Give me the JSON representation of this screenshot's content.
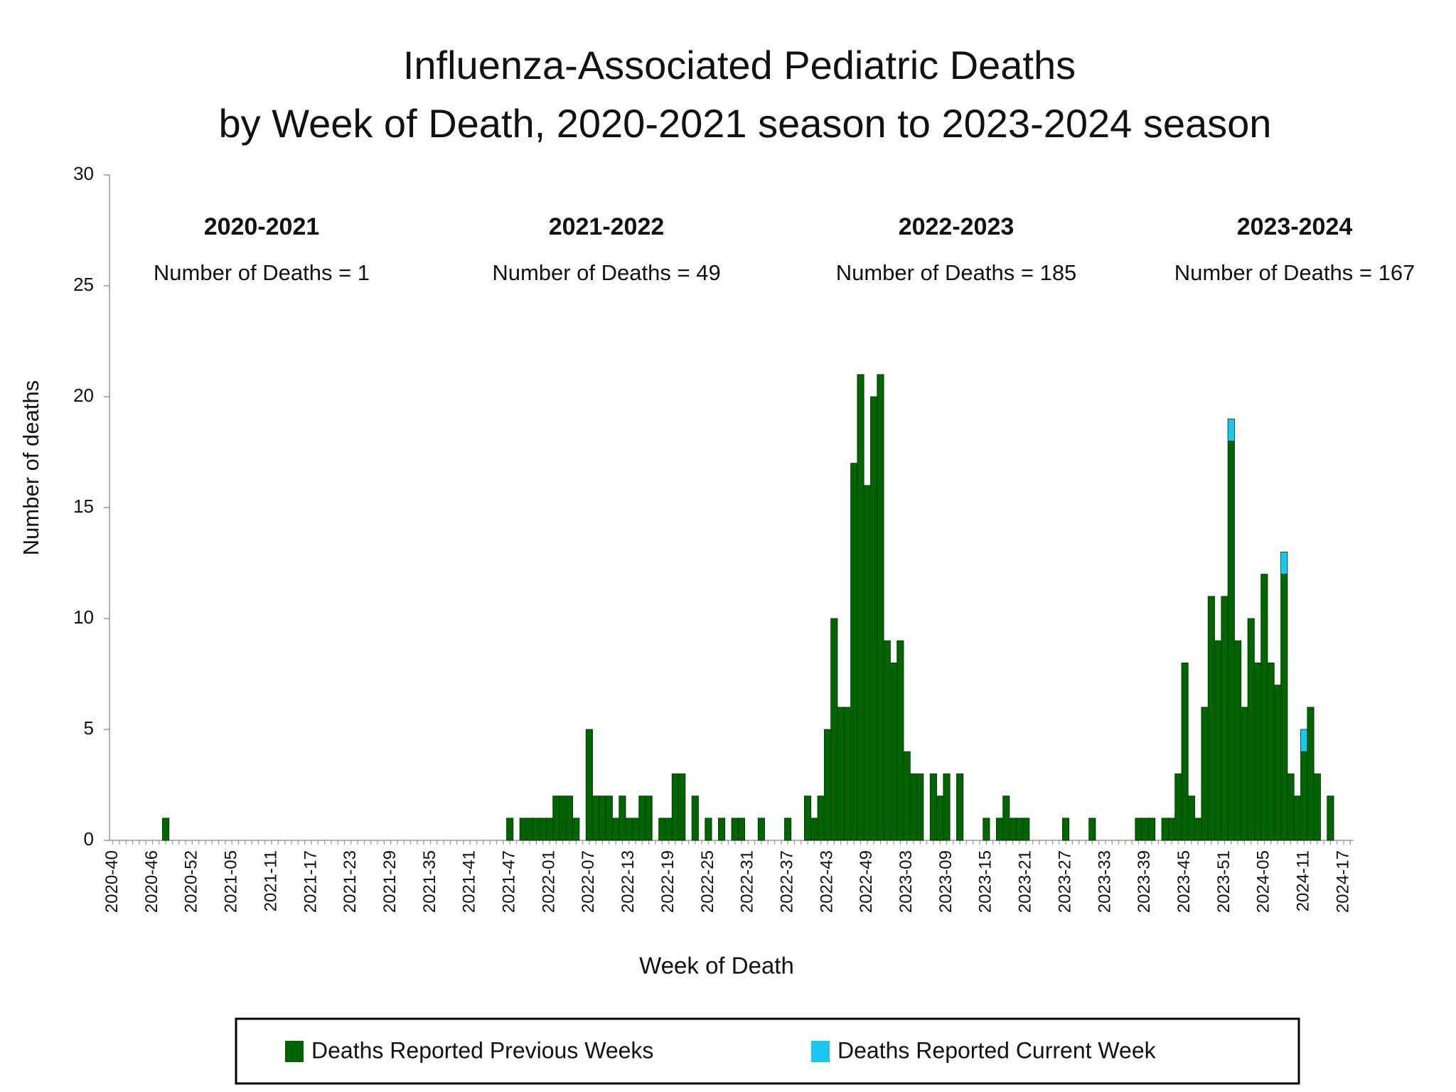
{
  "chart_data": {
    "type": "stacked_bar",
    "title": [
      "Influenza-Associated Pediatric Deaths",
      "by Week of Death, 2020-2021 season to 2023-2024 season"
    ],
    "y_label": "Number of deaths",
    "x_label": "Week of Death",
    "annotations": [
      {
        "season": "2020-2021",
        "deaths": "Number of Deaths = 1"
      },
      {
        "season": "2021-2022",
        "deaths": "Number of Deaths = 49"
      },
      {
        "season": "2022-2023",
        "deaths": "Number of Deaths = 185"
      },
      {
        "season": "2023-2024",
        "deaths": "Number of Deaths = 167"
      }
    ],
    "categories": [
      "2020-40",
      null,
      null,
      null,
      null,
      null,
      "2020-46",
      null,
      null,
      null,
      null,
      null,
      "2020-52",
      null,
      null,
      null,
      null,
      null,
      "2021-05",
      null,
      null,
      null,
      null,
      null,
      "2021-11",
      null,
      null,
      null,
      null,
      null,
      "2021-17",
      null,
      null,
      null,
      null,
      null,
      "2021-23",
      null,
      null,
      null,
      null,
      null,
      "2021-29",
      null,
      null,
      null,
      null,
      null,
      "2021-35",
      null,
      null,
      null,
      null,
      null,
      "2021-41",
      null,
      null,
      null,
      null,
      null,
      "2021-47",
      null,
      null,
      null,
      null,
      null,
      "2022-01",
      null,
      null,
      null,
      null,
      null,
      "2022-07",
      null,
      null,
      null,
      null,
      null,
      "2022-13",
      null,
      null,
      null,
      null,
      null,
      "2022-19",
      null,
      null,
      null,
      null,
      null,
      "2022-25",
      null,
      null,
      null,
      null,
      null,
      "2022-31",
      null,
      null,
      null,
      null,
      null,
      "2022-37",
      null,
      null,
      null,
      null,
      null,
      "2022-43",
      null,
      null,
      null,
      null,
      null,
      "2022-49",
      null,
      null,
      null,
      null,
      null,
      "2023-03",
      null,
      null,
      null,
      null,
      null,
      "2023-09",
      null,
      null,
      null,
      null,
      null,
      "2023-15",
      null,
      null,
      null,
      null,
      null,
      "2023-21",
      null,
      null,
      null,
      null,
      null,
      "2023-27",
      null,
      null,
      null,
      null,
      null,
      "2023-33",
      null,
      null,
      null,
      null,
      null,
      "2023-39",
      null,
      null,
      null,
      null,
      null,
      "2023-45",
      null,
      null,
      null,
      null,
      null,
      "2023-51",
      null,
      null,
      null,
      null,
      null,
      "2024-05",
      null,
      null,
      null,
      null,
      null,
      "2024-11",
      null,
      null,
      null,
      null,
      null,
      "2024-17",
      null
    ],
    "series": [
      {
        "name": "Deaths Reported Previous Weeks",
        "color": "#006400",
        "values": [
          0,
          0,
          0,
          0,
          0,
          0,
          0,
          0,
          1,
          0,
          0,
          0,
          0,
          0,
          0,
          0,
          0,
          0,
          0,
          0,
          0,
          0,
          0,
          0,
          0,
          0,
          0,
          0,
          0,
          0,
          0,
          0,
          0,
          0,
          0,
          0,
          0,
          0,
          0,
          0,
          0,
          0,
          0,
          0,
          0,
          0,
          0,
          0,
          0,
          0,
          0,
          0,
          0,
          0,
          0,
          0,
          0,
          0,
          0,
          0,
          1,
          0,
          1,
          1,
          1,
          1,
          1,
          2,
          2,
          2,
          1,
          0,
          5,
          2,
          2,
          2,
          1,
          2,
          1,
          1,
          2,
          2,
          0,
          1,
          1,
          3,
          3,
          0,
          2,
          0,
          1,
          0,
          1,
          0,
          1,
          1,
          0,
          0,
          1,
          0,
          0,
          0,
          1,
          0,
          0,
          2,
          1,
          2,
          5,
          10,
          6,
          6,
          17,
          21,
          16,
          20,
          21,
          9,
          8,
          9,
          4,
          3,
          3,
          0,
          3,
          2,
          3,
          0,
          3,
          0,
          0,
          0,
          1,
          0,
          1,
          2,
          1,
          1,
          1,
          0,
          0,
          0,
          0,
          0,
          1,
          0,
          0,
          0,
          1,
          0,
          0,
          0,
          0,
          0,
          0,
          1,
          1,
          1,
          0,
          1,
          1,
          3,
          8,
          2,
          1,
          6,
          11,
          9,
          11,
          18,
          9,
          6,
          10,
          8,
          12,
          8,
          7,
          12,
          3,
          2,
          4,
          6,
          3,
          0,
          2,
          0,
          0,
          0
        ]
      },
      {
        "name": "Deaths Reported Current Week",
        "color": "#18c8f2",
        "values": [
          0,
          0,
          0,
          0,
          0,
          0,
          0,
          0,
          0,
          0,
          0,
          0,
          0,
          0,
          0,
          0,
          0,
          0,
          0,
          0,
          0,
          0,
          0,
          0,
          0,
          0,
          0,
          0,
          0,
          0,
          0,
          0,
          0,
          0,
          0,
          0,
          0,
          0,
          0,
          0,
          0,
          0,
          0,
          0,
          0,
          0,
          0,
          0,
          0,
          0,
          0,
          0,
          0,
          0,
          0,
          0,
          0,
          0,
          0,
          0,
          0,
          0,
          0,
          0,
          0,
          0,
          0,
          0,
          0,
          0,
          0,
          0,
          0,
          0,
          0,
          0,
          0,
          0,
          0,
          0,
          0,
          0,
          0,
          0,
          0,
          0,
          0,
          0,
          0,
          0,
          0,
          0,
          0,
          0,
          0,
          0,
          0,
          0,
          0,
          0,
          0,
          0,
          0,
          0,
          0,
          0,
          0,
          0,
          0,
          0,
          0,
          0,
          0,
          0,
          0,
          0,
          0,
          0,
          0,
          0,
          0,
          0,
          0,
          0,
          0,
          0,
          0,
          0,
          0,
          0,
          0,
          0,
          0,
          0,
          0,
          0,
          0,
          0,
          0,
          0,
          0,
          0,
          0,
          0,
          0,
          0,
          0,
          0,
          0,
          0,
          0,
          0,
          0,
          0,
          0,
          0,
          0,
          0,
          0,
          0,
          0,
          0,
          0,
          0,
          0,
          0,
          0,
          0,
          0,
          1,
          0,
          0,
          0,
          0,
          0,
          0,
          0,
          1,
          0,
          0,
          1,
          0,
          0,
          0,
          0,
          0,
          0,
          0
        ]
      }
    ],
    "ylim": [
      0,
      30
    ],
    "yticks": [
      0,
      5,
      10,
      15,
      20,
      25,
      30
    ],
    "grid": false,
    "legend": "bottom"
  }
}
